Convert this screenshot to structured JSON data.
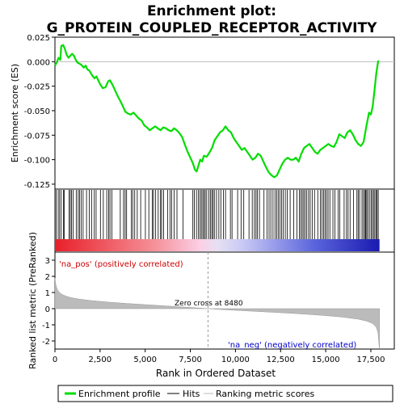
{
  "chart_data": {
    "type": "line",
    "title_line1": "Enrichment plot:",
    "title_line2": "G_PROTEIN_COUPLED_RECEPTOR_ACTIVITY",
    "top_panel": {
      "ylabel": "Enrichment score (ES)",
      "ylim": [
        -0.13,
        0.025
      ],
      "yticks": [
        "0.025",
        "0.000",
        "-0.025",
        "-0.050",
        "-0.075",
        "-0.100",
        "-0.125"
      ],
      "ytick_values": [
        0.025,
        0.0,
        -0.025,
        -0.05,
        -0.075,
        -0.1,
        -0.125
      ],
      "series_color": "#00dd00",
      "points": [
        [
          0,
          -0.004
        ],
        [
          100,
          -0.001
        ],
        [
          200,
          0.004
        ],
        [
          300,
          0.002
        ],
        [
          350,
          0.016
        ],
        [
          450,
          0.017
        ],
        [
          550,
          0.013
        ],
        [
          650,
          0.007
        ],
        [
          750,
          0.004
        ],
        [
          850,
          0.006
        ],
        [
          950,
          0.008
        ],
        [
          1050,
          0.006
        ],
        [
          1150,
          0.002
        ],
        [
          1250,
          -0.001
        ],
        [
          1350,
          -0.002
        ],
        [
          1450,
          -0.003
        ],
        [
          1600,
          -0.006
        ],
        [
          1700,
          -0.004
        ],
        [
          1800,
          -0.008
        ],
        [
          1900,
          -0.009
        ],
        [
          2000,
          -0.012
        ],
        [
          2100,
          -0.015
        ],
        [
          2200,
          -0.017
        ],
        [
          2300,
          -0.015
        ],
        [
          2400,
          -0.019
        ],
        [
          2500,
          -0.023
        ],
        [
          2650,
          -0.027
        ],
        [
          2800,
          -0.026
        ],
        [
          2950,
          -0.02
        ],
        [
          3050,
          -0.019
        ],
        [
          3200,
          -0.024
        ],
        [
          3350,
          -0.03
        ],
        [
          3500,
          -0.036
        ],
        [
          3650,
          -0.041
        ],
        [
          3800,
          -0.047
        ],
        [
          3900,
          -0.051
        ],
        [
          4050,
          -0.053
        ],
        [
          4200,
          -0.054
        ],
        [
          4350,
          -0.052
        ],
        [
          4500,
          -0.055
        ],
        [
          4650,
          -0.058
        ],
        [
          4800,
          -0.06
        ],
        [
          4950,
          -0.065
        ],
        [
          5100,
          -0.067
        ],
        [
          5250,
          -0.07
        ],
        [
          5400,
          -0.068
        ],
        [
          5550,
          -0.066
        ],
        [
          5700,
          -0.068
        ],
        [
          5850,
          -0.07
        ],
        [
          6000,
          -0.067
        ],
        [
          6150,
          -0.068
        ],
        [
          6300,
          -0.07
        ],
        [
          6450,
          -0.071
        ],
        [
          6600,
          -0.068
        ],
        [
          6750,
          -0.07
        ],
        [
          6900,
          -0.073
        ],
        [
          7050,
          -0.077
        ],
        [
          7200,
          -0.085
        ],
        [
          7350,
          -0.092
        ],
        [
          7500,
          -0.098
        ],
        [
          7650,
          -0.104
        ],
        [
          7750,
          -0.11
        ],
        [
          7850,
          -0.112
        ],
        [
          7950,
          -0.106
        ],
        [
          8050,
          -0.1
        ],
        [
          8150,
          -0.102
        ],
        [
          8250,
          -0.096
        ],
        [
          8400,
          -0.097
        ],
        [
          8550,
          -0.093
        ],
        [
          8700,
          -0.088
        ],
        [
          8850,
          -0.08
        ],
        [
          9000,
          -0.076
        ],
        [
          9150,
          -0.072
        ],
        [
          9300,
          -0.07
        ],
        [
          9450,
          -0.066
        ],
        [
          9600,
          -0.07
        ],
        [
          9750,
          -0.072
        ],
        [
          9900,
          -0.078
        ],
        [
          10050,
          -0.082
        ],
        [
          10200,
          -0.086
        ],
        [
          10350,
          -0.09
        ],
        [
          10500,
          -0.088
        ],
        [
          10650,
          -0.092
        ],
        [
          10800,
          -0.096
        ],
        [
          10950,
          -0.1
        ],
        [
          11100,
          -0.098
        ],
        [
          11250,
          -0.094
        ],
        [
          11400,
          -0.096
        ],
        [
          11550,
          -0.102
        ],
        [
          11700,
          -0.108
        ],
        [
          11850,
          -0.113
        ],
        [
          12000,
          -0.116
        ],
        [
          12150,
          -0.118
        ],
        [
          12300,
          -0.116
        ],
        [
          12450,
          -0.11
        ],
        [
          12600,
          -0.104
        ],
        [
          12750,
          -0.1
        ],
        [
          12900,
          -0.098
        ],
        [
          13050,
          -0.1
        ],
        [
          13200,
          -0.1
        ],
        [
          13350,
          -0.098
        ],
        [
          13500,
          -0.102
        ],
        [
          13650,
          -0.094
        ],
        [
          13800,
          -0.088
        ],
        [
          13950,
          -0.086
        ],
        [
          14100,
          -0.084
        ],
        [
          14250,
          -0.088
        ],
        [
          14400,
          -0.092
        ],
        [
          14550,
          -0.094
        ],
        [
          14700,
          -0.09
        ],
        [
          14850,
          -0.088
        ],
        [
          15000,
          -0.086
        ],
        [
          15150,
          -0.084
        ],
        [
          15300,
          -0.086
        ],
        [
          15450,
          -0.087
        ],
        [
          15600,
          -0.082
        ],
        [
          15750,
          -0.074
        ],
        [
          15900,
          -0.076
        ],
        [
          16050,
          -0.078
        ],
        [
          16200,
          -0.072
        ],
        [
          16350,
          -0.07
        ],
        [
          16500,
          -0.074
        ],
        [
          16650,
          -0.08
        ],
        [
          16800,
          -0.084
        ],
        [
          16950,
          -0.086
        ],
        [
          17100,
          -0.082
        ],
        [
          17250,
          -0.066
        ],
        [
          17400,
          -0.052
        ],
        [
          17500,
          -0.054
        ],
        [
          17600,
          -0.046
        ],
        [
          17700,
          -0.03
        ],
        [
          17800,
          -0.012
        ],
        [
          17900,
          0.0
        ],
        [
          17950,
          0.001
        ]
      ]
    },
    "hits_panel": {
      "hit_positions": [
        70,
        180,
        260,
        350,
        470,
        520,
        780,
        850,
        920,
        1010,
        1180,
        1290,
        1370,
        1460,
        1560,
        1750,
        1900,
        2030,
        2180,
        2280,
        2520,
        2680,
        2870,
        2980,
        3050,
        3160,
        3620,
        3800,
        3890,
        3970,
        4230,
        4310,
        4420,
        4560,
        4750,
        5010,
        5200,
        5390,
        5460,
        5580,
        5720,
        5850,
        5910,
        6020,
        6250,
        6380,
        6470,
        6600,
        6760,
        7100,
        7640,
        7720,
        7840,
        7950,
        8030,
        8110,
        8190,
        8260,
        8330,
        8410,
        8530,
        8610,
        8690,
        8760,
        8830,
        8950,
        9080,
        9190,
        9330,
        9450,
        9720,
        9810,
        10120,
        10310,
        10460,
        10750,
        10930,
        11050,
        11140,
        11220,
        11330,
        11580,
        11750,
        11860,
        11960,
        12080,
        12190,
        12290,
        12370,
        12460,
        12560,
        12650,
        12760,
        12870,
        13030,
        13230,
        13410,
        13540,
        13620,
        13700,
        13780,
        13860,
        13950,
        14050,
        14140,
        14250,
        14380,
        14560,
        14700,
        14790,
        14880,
        14960,
        15040,
        15130,
        15230,
        15400,
        15510,
        15690,
        15780,
        16020,
        16150,
        16240,
        16350,
        16540,
        16730,
        16800,
        16880,
        17010,
        17090,
        17160,
        17210,
        17270,
        17330,
        17420,
        17510,
        17580,
        17650,
        17720,
        17790,
        17850,
        17910
      ]
    },
    "rank_panel": {
      "ylabel": "Ranked list metric (PreRanked)",
      "ylim": [
        -2.5,
        3.5
      ],
      "yticks": [
        "3",
        "2",
        "1",
        "0",
        "-1",
        "-2"
      ],
      "ytick_values": [
        3,
        2,
        1,
        0,
        -1,
        -2
      ],
      "fill_color": "#bbbbbb",
      "profile": [
        [
          0,
          1.9
        ],
        [
          30,
          1.6
        ],
        [
          80,
          1.35
        ],
        [
          150,
          1.15
        ],
        [
          250,
          1.0
        ],
        [
          400,
          0.88
        ],
        [
          600,
          0.78
        ],
        [
          900,
          0.68
        ],
        [
          1300,
          0.6
        ],
        [
          2000,
          0.5
        ],
        [
          3000,
          0.4
        ],
        [
          4000,
          0.32
        ],
        [
          5000,
          0.25
        ],
        [
          6000,
          0.18
        ],
        [
          7000,
          0.11
        ],
        [
          8000,
          0.04
        ],
        [
          8480,
          0.0
        ],
        [
          9000,
          -0.04
        ],
        [
          10000,
          -0.1
        ],
        [
          11000,
          -0.16
        ],
        [
          12000,
          -0.22
        ],
        [
          13000,
          -0.28
        ],
        [
          14000,
          -0.35
        ],
        [
          15000,
          -0.43
        ],
        [
          16000,
          -0.53
        ],
        [
          16800,
          -0.65
        ],
        [
          17300,
          -0.78
        ],
        [
          17600,
          -0.92
        ],
        [
          17800,
          -1.15
        ],
        [
          17900,
          -1.5
        ],
        [
          17950,
          -2.2
        ],
        [
          17980,
          -2.5
        ]
      ],
      "zero_cross_label": "Zero cross at 8480",
      "zero_cross": 8480,
      "pos_label": "'na_pos' (positively correlated)",
      "neg_label": "'na_neg' (negatively correlated)"
    },
    "xaxis": {
      "label": "Rank in Ordered Dataset",
      "xlim": [
        0,
        18800
      ],
      "ticks": [
        "0",
        "2,500",
        "5,000",
        "7,500",
        "10,000",
        "12,500",
        "15,000",
        "17,500"
      ],
      "tick_values": [
        0,
        2500,
        5000,
        7500,
        10000,
        12500,
        15000,
        17500
      ],
      "list_size": 17980
    },
    "legend": {
      "items": [
        {
          "label": "Enrichment profile",
          "color": "#00dd00"
        },
        {
          "label": "Hits",
          "color": "#000000"
        },
        {
          "label": "Ranking metric scores",
          "color": "#bbbbbb"
        }
      ]
    }
  }
}
